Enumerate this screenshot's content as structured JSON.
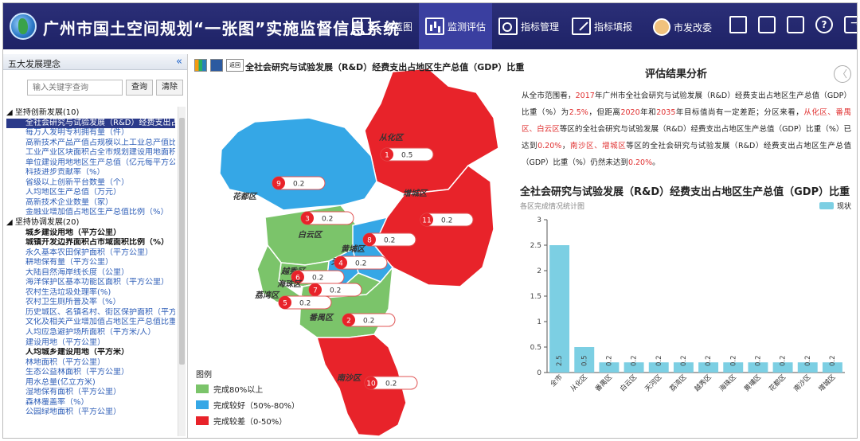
{
  "header": {
    "title": "广州市国土空间规划“一张图”实施监督信息系统",
    "nav": [
      {
        "label": "一张蓝图",
        "icon": "blueprint-book-icon"
      },
      {
        "label": "监测评估",
        "icon": "monitor-chart-icon"
      },
      {
        "label": "指标管理",
        "icon": "indicator-flow-icon"
      },
      {
        "label": "指标填报",
        "icon": "edit-form-icon"
      }
    ],
    "user": "市发改委",
    "help_glyph": "?"
  },
  "sidebar": {
    "title": "五大发展理念",
    "collapse": "«",
    "search_placeholder": "输入关键字查询",
    "query_label": "查询",
    "clear_label": "清除",
    "tree": [
      {
        "type": "grp",
        "text": "◢  坚持创新发展(10)"
      },
      {
        "type": "sel",
        "text": "全社会研究与试验发展（R&D）经费支出占地区"
      },
      {
        "type": "it",
        "text": "每万人发明专利拥有量（件）"
      },
      {
        "type": "it",
        "text": "高新技术产品产值占规模以上工业总产值比重"
      },
      {
        "type": "it",
        "text": "工业产业区块面积占全市规划建设用地面积比"
      },
      {
        "type": "it",
        "text": "单位建设用地地区生产总值（亿元每平方公里）"
      },
      {
        "type": "it",
        "text": "科技进步贡献率（%）"
      },
      {
        "type": "it",
        "text": "省级以上创新平台数量（个）"
      },
      {
        "type": "it",
        "text": "人均地区生产总值（万元）"
      },
      {
        "type": "it",
        "text": "高新技术企业数量（家）"
      },
      {
        "type": "it",
        "text": "金融业增加值占地区生产总值比例（%）"
      },
      {
        "type": "grp",
        "text": "◢  坚持协调发展(20)"
      },
      {
        "type": "bold",
        "text": "城乡建设用地（平方公里）"
      },
      {
        "type": "bold",
        "text": "城镇开发边界面积占市域面积比例（%）"
      },
      {
        "type": "it",
        "text": "永久基本农田保护面积（平方公里）"
      },
      {
        "type": "it",
        "text": "耕地保有量（平方公里）"
      },
      {
        "type": "it",
        "text": "大陆自然海岸线长度（公里）"
      },
      {
        "type": "it",
        "text": "海洋保护区基本功能区面积（平方公里）"
      },
      {
        "type": "it",
        "text": "农村生活垃圾处理率(%)"
      },
      {
        "type": "it",
        "text": "农村卫生厕所普及率（%）"
      },
      {
        "type": "it",
        "text": "历史城区、名镇名村、街区保护面积（平方公里）"
      },
      {
        "type": "it",
        "text": "文化及相关产业增加值占地区生产总值比重"
      },
      {
        "type": "it",
        "text": "人均应急避护场所面积（平方米/人）"
      },
      {
        "type": "it",
        "text": "建设用地（平方公里）"
      },
      {
        "type": "bold",
        "text": "人均城乡建设用地（平方米）"
      },
      {
        "type": "it",
        "text": "林地面积（平方公里）"
      },
      {
        "type": "it",
        "text": "生态公益林面积（平方公里）"
      },
      {
        "type": "it",
        "text": "用水总量(亿立方米)"
      },
      {
        "type": "it",
        "text": "湿地保有面积（平方公里）"
      },
      {
        "type": "it",
        "text": "森林覆盖率（%）"
      },
      {
        "type": "it",
        "text": "公园绿地面积（平方公里）"
      }
    ]
  },
  "map": {
    "title": "全社会研究与试验发展（R&D）经费支出占地区生产总值（GDP）比重",
    "tool_chart": "",
    "tool_save": "",
    "tool_back": "返回",
    "districts": [
      {
        "name": "从化区",
        "rank": "1",
        "value": "0.5",
        "status": "bad"
      },
      {
        "name": "花都区",
        "rank": "9",
        "value": "0.2",
        "status": "good"
      },
      {
        "name": "白云区",
        "rank": "3",
        "value": "0.2",
        "status": "ok"
      },
      {
        "name": "增城区",
        "rank": "11",
        "value": "0.2",
        "status": "bad"
      },
      {
        "name": "黄埔区",
        "rank": "8",
        "value": "0.2",
        "status": "good"
      },
      {
        "name": "天河区",
        "rank": "4",
        "value": "0.2",
        "status": "good"
      },
      {
        "name": "越秀区",
        "rank": "6",
        "value": "0.2",
        "status": "ok"
      },
      {
        "name": "海珠区",
        "rank": "7",
        "value": "0.2",
        "status": "ok"
      },
      {
        "name": "荔湾区",
        "rank": "5",
        "value": "0.2",
        "status": "ok"
      },
      {
        "name": "番禺区",
        "rank": "2",
        "value": "0.2",
        "status": "ok"
      },
      {
        "name": "南沙区",
        "rank": "10",
        "value": "0.2",
        "status": "bad"
      }
    ],
    "legend": {
      "title": "图例",
      "items": [
        {
          "label": "完成80%以上",
          "color": "#7bc46a"
        },
        {
          "label": "完成较好（50%-80%）",
          "color": "#35a7e6"
        },
        {
          "label": "完成较差（0-50%）",
          "color": "#e8232a"
        }
      ]
    }
  },
  "analysis": {
    "title": "评估结果分析",
    "back": "〈",
    "segments": [
      {
        "t": "        从全市范围看，",
        "hl": false
      },
      {
        "t": "2017",
        "hl": true
      },
      {
        "t": "年广州市全社会研究与试验发展（R&D）经费支出占地区生产总值（GDP）比重（%）为",
        "hl": false
      },
      {
        "t": "2.5%",
        "hl": true
      },
      {
        "t": "，但距离",
        "hl": false
      },
      {
        "t": "2020",
        "hl": true
      },
      {
        "t": "年和",
        "hl": false
      },
      {
        "t": "2035",
        "hl": true
      },
      {
        "t": "年目标值尚有一定差距；分区来看，",
        "hl": false
      },
      {
        "t": "从化区、番禺区、白云区",
        "hl": true
      },
      {
        "t": "等区的全社会研究与试验发展（R&D）经费支出占地区生产总值（GDP）比重（%）已达到",
        "hl": false
      },
      {
        "t": "0.20%",
        "hl": true
      },
      {
        "t": "，",
        "hl": false
      },
      {
        "t": "南沙区、增城区",
        "hl": true
      },
      {
        "t": "等区的全社会研究与试验发展（R&D）经费支出占地区生产总值（GDP）比重（%）仍然未达到",
        "hl": false
      },
      {
        "t": "0.20%",
        "hl": true
      },
      {
        "t": "。",
        "hl": false
      }
    ]
  },
  "chart_data": {
    "type": "bar",
    "title": "全社会研究与试验发展（R&D）经费支出占地区生产总值（GDP）比重（%）",
    "subtitle": "各区完成情况统计图",
    "legend": [
      "现状"
    ],
    "color": "#7ccfe3",
    "categories": [
      "全市",
      "从化区",
      "番禺区",
      "白云区",
      "天河区",
      "荔湾区",
      "越秀区",
      "海珠区",
      "黄埔区",
      "花都区",
      "南沙区",
      "增城区"
    ],
    "values": [
      2.5,
      0.5,
      0.2,
      0.2,
      0.2,
      0.2,
      0.2,
      0.2,
      0.2,
      0.2,
      0.2,
      0.2
    ],
    "ylim": [
      0,
      3
    ],
    "yticks": [
      "0",
      "0.5",
      "1",
      "1.5",
      "2",
      "2.5",
      "3"
    ],
    "grid": false
  }
}
